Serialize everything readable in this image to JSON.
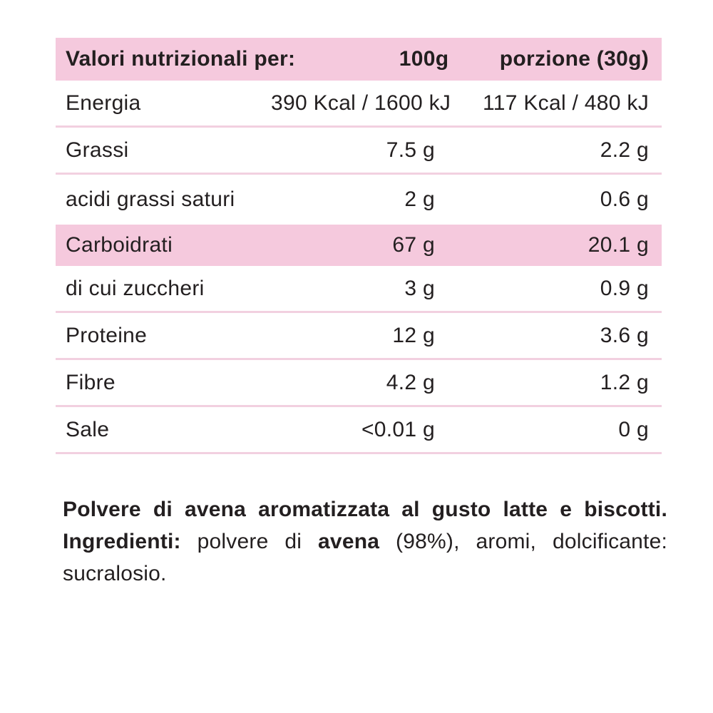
{
  "table": {
    "header": {
      "label": "Valori nutrizionali per:",
      "per100": "100g",
      "portion": "porzione (30g)"
    },
    "rows": [
      {
        "label": "Energia",
        "per100": "390 Kcal / 1600 kJ",
        "portion": "117 Kcal / 480 kJ"
      },
      {
        "label": "Grassi",
        "per100": "7.5 g",
        "portion": "2.2 g"
      },
      {
        "label": "acidi grassi saturi",
        "per100": "2 g",
        "portion": "0.6 g"
      },
      {
        "label": "Carboidrati",
        "per100": "67 g",
        "portion": "20.1 g"
      },
      {
        "label": "di cui zuccheri",
        "per100": "3 g",
        "portion": "0.9 g"
      },
      {
        "label": "Proteine",
        "per100": "12 g",
        "portion": "3.6 g"
      },
      {
        "label": "Fibre",
        "per100": "4.2 g",
        "portion": "1.2 g"
      },
      {
        "label": "Sale",
        "per100": "<0.01 g",
        "portion": "0 g"
      }
    ]
  },
  "description": {
    "line1": "Polvere di avena aromatizzata al gusto latte e biscotti.",
    "line2_bold": "Ingredienti:",
    "line2_regular": "polvere di",
    "line2_allergen": "avena",
    "line2_rest": "(98%), aromi, dolcificante:",
    "line3": "sucralosio."
  },
  "colors": {
    "accent_pink": "#F5C9DD",
    "divider_pink": "#F2D0E0",
    "text": "#231F20",
    "background": "#FFFFFF"
  }
}
